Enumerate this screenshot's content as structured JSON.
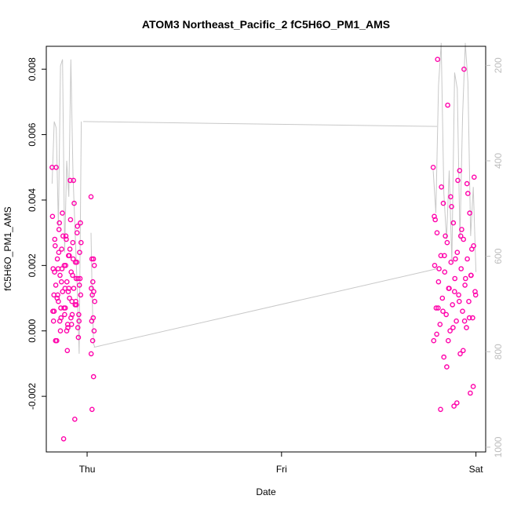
{
  "chart_data": {
    "type": "scatter",
    "title": "ATOM3 Northeast_Pacific_2 fC5H6O_PM1_AMS",
    "xlabel": "Date",
    "ylabel": "fC5H6O_PM1_AMS",
    "x_ticks": [
      "Thu",
      "Fri",
      "Sat"
    ],
    "x_tick_days": [
      0,
      1,
      2
    ],
    "x_unit": "days from Thursday 00:00",
    "xlim": [
      -0.21,
      2.05
    ],
    "ylim": [
      -0.0037,
      0.0087
    ],
    "y_ticks": [
      "-0.002",
      "0.000",
      "0.002",
      "0.004",
      "0.006",
      "0.008"
    ],
    "secondary_axis": {
      "side": "right",
      "ticks": [
        "200",
        "400",
        "600",
        "800",
        "1000"
      ],
      "range_top": 160,
      "range_bottom": 1010,
      "color": "#bdbdbd"
    },
    "point_color": "#ff00aa",
    "line_color": "#c8c8c8",
    "clusters": [
      {
        "name": "Thursday",
        "x_range": [
          -0.18,
          -0.03
        ],
        "points": [
          0.005,
          0.0046,
          0.0031,
          0.003,
          0.0029,
          0.0028,
          0.0027,
          0.0025,
          0.0024,
          0.0023,
          0.0022,
          0.0021,
          0.002,
          0.0019,
          0.0018,
          0.0017,
          0.0016,
          0.0015,
          0.0014,
          0.0013,
          0.0012,
          0.0011,
          0.001,
          0.0009,
          0.0008,
          0.0007,
          0.0006,
          0.0005,
          0.0004,
          0.0003,
          0.0001,
          -0.0003,
          -0.0027,
          -0.0033,
          0.0035,
          0.0034,
          0.0033,
          0.0032,
          0.0028,
          0.0026,
          0.0022,
          0.0019,
          0.0016,
          0.0013,
          0.0011,
          0.0009,
          0.0005,
          0.0003,
          0.0002,
          0.0,
          -0.0002,
          -0.0006,
          0.005,
          0.0039,
          0.0029,
          0.0027,
          0.0025,
          0.0024,
          0.0021,
          0.002,
          0.0018,
          0.0017,
          0.0015,
          0.0014,
          0.0012,
          0.001,
          0.0008,
          0.0007,
          0.0006,
          0.0004,
          0.0003,
          0.0001,
          0.0,
          -0.0003,
          0.0046,
          0.0036,
          0.0033,
          0.0023,
          0.0019,
          0.0016,
          0.0013,
          0.0011,
          0.0009,
          0.0007,
          0.0005,
          0.0002
        ],
        "line_y": [
          0.0045,
          0.0064,
          0.0062,
          0.0032,
          0.0081,
          0.0083,
          0.0024,
          0.0052,
          0.0041,
          0.0083,
          0.0048,
          0.0031,
          0.0014,
          -0.0007,
          0.0064
        ]
      },
      {
        "name": "Friday",
        "x_range": [
          0.02,
          0.04
        ],
        "points": [
          0.0041,
          0.0022,
          0.0022,
          0.002,
          0.0015,
          0.0013,
          0.0012,
          0.0011,
          0.0009,
          0.0004,
          0.0003,
          0.0,
          -0.0003,
          -0.0007,
          -0.0014,
          -0.0024
        ],
        "line_y": [
          0.003,
          0.0009,
          -0.0004,
          -0.0005
        ]
      },
      {
        "name": "Saturday",
        "x_range": [
          1.78,
          2.0
        ],
        "points": [
          0.005,
          0.0049,
          0.0039,
          0.0036,
          0.0033,
          0.003,
          0.0028,
          0.0027,
          0.0026,
          0.0024,
          0.0023,
          0.0022,
          0.0021,
          0.002,
          0.0019,
          0.0018,
          0.0017,
          0.0016,
          0.0015,
          0.0014,
          0.0013,
          0.0012,
          0.0011,
          0.001,
          0.0009,
          0.0008,
          0.0007,
          0.0006,
          0.0005,
          0.0004,
          0.0003,
          0.0002,
          0.0001,
          0.0,
          -0.0003,
          -0.0007,
          -0.0008,
          -0.0019,
          -0.0023,
          0.0083,
          0.008,
          0.0069,
          0.0047,
          0.0046,
          0.0044,
          0.0042,
          0.0038,
          0.0034,
          0.0031,
          0.0029,
          0.0025,
          0.0022,
          0.0019,
          0.0016,
          0.0013,
          0.0011,
          0.0009,
          0.0006,
          0.0004,
          0.0001,
          -0.0001,
          -0.0006,
          -0.0011,
          -0.0017,
          -0.0022,
          -0.0024,
          0.0045,
          0.0041,
          0.0035,
          0.0029,
          0.0023,
          0.0017,
          0.0012,
          0.0007,
          0.0003,
          -0.0003
        ],
        "line_y": [
          0.0049,
          0.0036,
          0.0075,
          0.0088,
          0.0042,
          0.0028,
          0.0049,
          0.0021,
          0.0079,
          0.0074,
          0.0028,
          0.0066,
          0.0088,
          0.0076,
          0.0029,
          0.0044,
          0.0018
        ]
      }
    ],
    "connectors": [
      {
        "from": [
          -0.02,
          0.0064
        ],
        "to": [
          1.8,
          0.00625
        ]
      },
      {
        "from": [
          0.035,
          -0.0005
        ],
        "to": [
          1.8,
          0.0019
        ]
      }
    ]
  }
}
